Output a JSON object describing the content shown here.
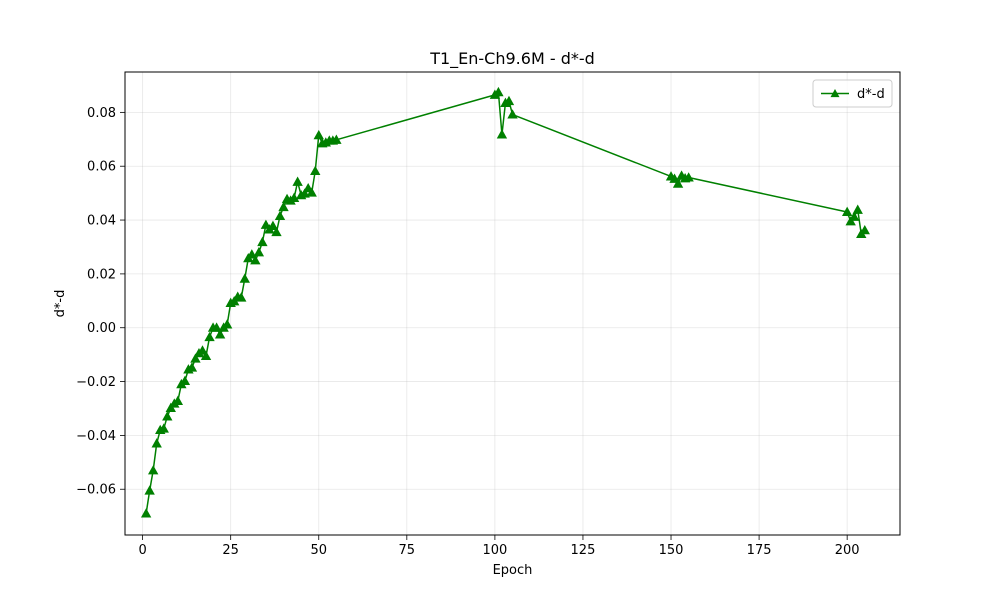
{
  "chart_data": {
    "type": "line",
    "title": "T1_En-Ch9.6M - d*-d",
    "xlabel": "Epoch",
    "ylabel": "d*-d",
    "xlim": [
      -5,
      215
    ],
    "ylim": [
      -0.077,
      0.095
    ],
    "xticks": [
      0,
      25,
      50,
      75,
      100,
      125,
      150,
      175,
      200
    ],
    "yticks": [
      -0.06,
      -0.04,
      -0.02,
      0.0,
      0.02,
      0.04,
      0.06,
      0.08
    ],
    "xtick_labels": [
      "0",
      "25",
      "50",
      "75",
      "100",
      "125",
      "150",
      "175",
      "200"
    ],
    "ytick_labels": [
      "−0.06",
      "−0.04",
      "−0.02",
      "0.00",
      "0.02",
      "0.04",
      "0.06",
      "0.08"
    ],
    "grid": true,
    "legend_position": "upper right",
    "series": [
      {
        "name": "d*-d",
        "color": "#008000",
        "marker": "triangle-up",
        "x": [
          1,
          2,
          3,
          4,
          5,
          6,
          7,
          8,
          9,
          10,
          11,
          12,
          13,
          14,
          15,
          16,
          17,
          18,
          19,
          20,
          21,
          22,
          23,
          24,
          25,
          26,
          27,
          28,
          29,
          30,
          31,
          32,
          33,
          34,
          35,
          36,
          37,
          38,
          39,
          40,
          41,
          42,
          43,
          44,
          45,
          46,
          47,
          48,
          49,
          50,
          51,
          52,
          53,
          54,
          55,
          100,
          101,
          102,
          103,
          104,
          105,
          150,
          151,
          152,
          153,
          154,
          155,
          200,
          201,
          202,
          203,
          204,
          205
        ],
        "y": [
          -0.069,
          -0.0605,
          -0.053,
          -0.043,
          -0.038,
          -0.0375,
          -0.033,
          -0.0298,
          -0.0282,
          -0.0272,
          -0.021,
          -0.0198,
          -0.0155,
          -0.0148,
          -0.0115,
          -0.0095,
          -0.0085,
          -0.0105,
          -0.0035,
          0.0,
          0.0,
          -0.0025,
          0.0,
          0.0012,
          0.0092,
          0.0098,
          0.0115,
          0.0112,
          0.0182,
          0.0258,
          0.0272,
          0.025,
          0.028,
          0.0318,
          0.0382,
          0.0365,
          0.0378,
          0.0355,
          0.0415,
          0.0448,
          0.0478,
          0.0472,
          0.0482,
          0.0542,
          0.0492,
          0.0498,
          0.0518,
          0.0502,
          0.0582,
          0.0715,
          0.0685,
          0.0688,
          0.0695,
          0.0695,
          0.0698,
          0.0865,
          0.0875,
          0.0718,
          0.0835,
          0.0842,
          0.0792,
          0.0562,
          0.0553,
          0.0535,
          0.0565,
          0.0555,
          0.0558,
          0.043,
          0.0395,
          0.0412,
          0.0438,
          0.0348,
          0.0362
        ]
      }
    ]
  }
}
